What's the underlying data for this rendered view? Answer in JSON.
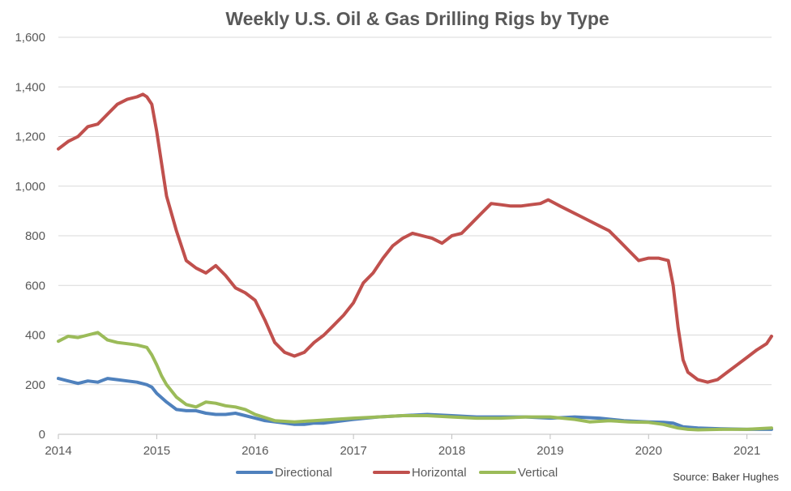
{
  "chart_data": {
    "type": "line",
    "title": "Weekly U.S. Oil & Gas Drilling Rigs by Type",
    "source": "Source: Baker Hughes",
    "xlabel": "",
    "ylabel": "",
    "ylim": [
      0,
      1600
    ],
    "yticks": [
      0,
      200,
      400,
      600,
      800,
      1000,
      1200,
      1400,
      1600
    ],
    "ytick_labels": [
      "0",
      "200",
      "400",
      "600",
      "800",
      "1,000",
      "1,200",
      "1,400",
      "1,600"
    ],
    "xlim": [
      2014,
      2021.25
    ],
    "xticks": [
      2014,
      2015,
      2016,
      2017,
      2018,
      2019,
      2020,
      2021
    ],
    "xtick_labels": [
      "2014",
      "2015",
      "2016",
      "2017",
      "2018",
      "2019",
      "2020",
      "2021"
    ],
    "grid": "horizontal",
    "legend_position": "bottom",
    "series": [
      {
        "name": "Directional",
        "color": "#4F81BD",
        "x": [
          2014.0,
          2014.1,
          2014.2,
          2014.3,
          2014.4,
          2014.5,
          2014.6,
          2014.7,
          2014.8,
          2014.9,
          2014.95,
          2015.0,
          2015.1,
          2015.2,
          2015.3,
          2015.4,
          2015.5,
          2015.6,
          2015.7,
          2015.8,
          2015.9,
          2016.0,
          2016.1,
          2016.2,
          2016.3,
          2016.4,
          2016.5,
          2016.6,
          2016.7,
          2016.8,
          2016.9,
          2017.0,
          2017.25,
          2017.5,
          2017.75,
          2018.0,
          2018.25,
          2018.5,
          2018.75,
          2019.0,
          2019.25,
          2019.5,
          2019.75,
          2020.0,
          2020.15,
          2020.25,
          2020.35,
          2020.5,
          2020.75,
          2021.0,
          2021.25
        ],
        "values": [
          225,
          215,
          205,
          215,
          210,
          225,
          220,
          215,
          210,
          200,
          190,
          165,
          130,
          100,
          95,
          95,
          85,
          80,
          80,
          85,
          75,
          65,
          55,
          50,
          45,
          40,
          40,
          45,
          45,
          50,
          55,
          60,
          70,
          75,
          80,
          75,
          70,
          70,
          70,
          65,
          70,
          65,
          55,
          50,
          48,
          45,
          30,
          25,
          22,
          20,
          20
        ]
      },
      {
        "name": "Horizontal",
        "color": "#C0504D",
        "x": [
          2014.0,
          2014.1,
          2014.2,
          2014.3,
          2014.4,
          2014.5,
          2014.6,
          2014.7,
          2014.8,
          2014.86,
          2014.9,
          2014.95,
          2015.0,
          2015.1,
          2015.2,
          2015.3,
          2015.4,
          2015.5,
          2015.6,
          2015.7,
          2015.8,
          2015.9,
          2016.0,
          2016.1,
          2016.2,
          2016.3,
          2016.4,
          2016.5,
          2016.6,
          2016.7,
          2016.8,
          2016.9,
          2017.0,
          2017.1,
          2017.2,
          2017.3,
          2017.4,
          2017.5,
          2017.6,
          2017.7,
          2017.8,
          2017.9,
          2018.0,
          2018.1,
          2018.2,
          2018.3,
          2018.4,
          2018.5,
          2018.6,
          2018.7,
          2018.8,
          2018.9,
          2018.98,
          2019.1,
          2019.2,
          2019.3,
          2019.4,
          2019.5,
          2019.6,
          2019.7,
          2019.8,
          2019.9,
          2020.0,
          2020.1,
          2020.2,
          2020.25,
          2020.3,
          2020.35,
          2020.4,
          2020.5,
          2020.6,
          2020.7,
          2020.8,
          2020.9,
          2021.0,
          2021.1,
          2021.2,
          2021.25
        ],
        "values": [
          1150,
          1180,
          1200,
          1240,
          1250,
          1290,
          1330,
          1350,
          1360,
          1370,
          1360,
          1330,
          1220,
          960,
          820,
          700,
          670,
          650,
          680,
          640,
          590,
          570,
          540,
          460,
          370,
          330,
          315,
          330,
          370,
          400,
          440,
          480,
          530,
          610,
          650,
          710,
          760,
          790,
          810,
          800,
          790,
          770,
          800,
          810,
          850,
          890,
          930,
          925,
          920,
          920,
          925,
          930,
          945,
          920,
          900,
          880,
          860,
          840,
          820,
          780,
          740,
          700,
          710,
          710,
          700,
          600,
          430,
          300,
          250,
          220,
          210,
          220,
          250,
          280,
          310,
          340,
          365,
          395
        ]
      },
      {
        "name": "Vertical",
        "color": "#9BBB59",
        "x": [
          2014.0,
          2014.1,
          2014.2,
          2014.3,
          2014.4,
          2014.5,
          2014.6,
          2014.7,
          2014.8,
          2014.9,
          2014.95,
          2015.0,
          2015.05,
          2015.1,
          2015.2,
          2015.3,
          2015.4,
          2015.5,
          2015.6,
          2015.7,
          2015.8,
          2015.9,
          2016.0,
          2016.2,
          2016.4,
          2016.6,
          2016.8,
          2017.0,
          2017.25,
          2017.5,
          2017.75,
          2018.0,
          2018.25,
          2018.5,
          2018.75,
          2019.0,
          2019.25,
          2019.4,
          2019.6,
          2019.8,
          2020.0,
          2020.15,
          2020.3,
          2020.4,
          2020.5,
          2020.75,
          2021.0,
          2021.25
        ],
        "values": [
          375,
          395,
          390,
          400,
          410,
          380,
          370,
          365,
          360,
          350,
          320,
          280,
          235,
          200,
          150,
          120,
          110,
          130,
          125,
          115,
          110,
          100,
          80,
          55,
          50,
          55,
          60,
          65,
          70,
          75,
          75,
          70,
          65,
          65,
          70,
          70,
          60,
          50,
          55,
          50,
          48,
          40,
          25,
          20,
          18,
          20,
          20,
          25
        ]
      }
    ]
  }
}
